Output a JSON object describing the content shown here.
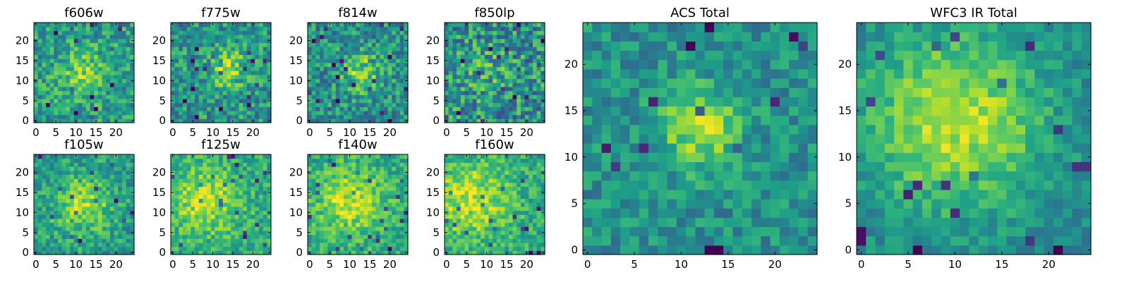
{
  "chart_data": [
    {
      "type": "heatmap",
      "title": "f606w",
      "grid": 25,
      "xticks": [
        0,
        5,
        10,
        15,
        20
      ],
      "yticks": [
        0,
        5,
        10,
        15,
        20
      ],
      "colormap": "viridis",
      "seed": 11,
      "blob": {
        "x": 12,
        "y": 12,
        "sigma": 4,
        "amp": 0.25
      },
      "noise": 0.42,
      "base": 0.55
    },
    {
      "type": "heatmap",
      "title": "f775w",
      "grid": 25,
      "xticks": [
        0,
        5,
        10,
        15,
        20
      ],
      "yticks": [
        0,
        5,
        10,
        15,
        20
      ],
      "colormap": "viridis",
      "seed": 23,
      "blob": {
        "x": 14,
        "y": 13,
        "sigma": 3.5,
        "amp": 0.3
      },
      "noise": 0.45,
      "base": 0.52
    },
    {
      "type": "heatmap",
      "title": "f814w",
      "grid": 25,
      "xticks": [
        0,
        5,
        10,
        15,
        20
      ],
      "yticks": [
        0,
        5,
        10,
        15,
        20
      ],
      "colormap": "viridis",
      "seed": 37,
      "blob": {
        "x": 13,
        "y": 12,
        "sigma": 3.5,
        "amp": 0.3
      },
      "noise": 0.45,
      "base": 0.5
    },
    {
      "type": "heatmap",
      "title": "f850lp",
      "grid": 25,
      "xticks": [
        0,
        5,
        10,
        15,
        20
      ],
      "yticks": [
        0,
        5,
        10,
        15,
        20
      ],
      "colormap": "viridis",
      "seed": 41,
      "blob": {
        "x": 10,
        "y": 12,
        "sigma": 5,
        "amp": 0.1
      },
      "noise": 0.55,
      "base": 0.5
    },
    {
      "type": "heatmap",
      "title": "f105w",
      "grid": 25,
      "xticks": [
        0,
        5,
        10,
        15,
        20
      ],
      "yticks": [
        0,
        5,
        10,
        15,
        20
      ],
      "colormap": "viridis",
      "seed": 53,
      "blob": {
        "x": 12,
        "y": 12,
        "sigma": 5,
        "amp": 0.3
      },
      "noise": 0.35,
      "base": 0.55
    },
    {
      "type": "heatmap",
      "title": "f125w",
      "grid": 25,
      "xticks": [
        0,
        5,
        10,
        15,
        20
      ],
      "yticks": [
        0,
        5,
        10,
        15,
        20
      ],
      "colormap": "viridis",
      "seed": 61,
      "blob": {
        "x": 8,
        "y": 13,
        "sigma": 6,
        "amp": 0.3
      },
      "noise": 0.32,
      "base": 0.6
    },
    {
      "type": "heatmap",
      "title": "f140w",
      "grid": 25,
      "xticks": [
        0,
        5,
        10,
        15,
        20
      ],
      "yticks": [
        0,
        5,
        10,
        15,
        20
      ],
      "colormap": "viridis",
      "seed": 71,
      "blob": {
        "x": 10,
        "y": 13,
        "sigma": 6,
        "amp": 0.3
      },
      "noise": 0.33,
      "base": 0.6
    },
    {
      "type": "heatmap",
      "title": "f160w",
      "grid": 25,
      "xticks": [
        0,
        5,
        10,
        15,
        20
      ],
      "yticks": [
        0,
        5,
        10,
        15,
        20
      ],
      "colormap": "viridis",
      "seed": 83,
      "blob": {
        "x": 6,
        "y": 13,
        "sigma": 7,
        "amp": 0.3
      },
      "noise": 0.33,
      "base": 0.6
    },
    {
      "type": "heatmap",
      "title": "ACS Total",
      "grid": 25,
      "xticks": [
        0,
        5,
        10,
        15,
        20
      ],
      "yticks": [
        0,
        5,
        10,
        15,
        20
      ],
      "colormap": "viridis",
      "seed": 97,
      "blob": {
        "x": 12,
        "y": 13,
        "sigma": 3,
        "amp": 0.38
      },
      "noise": 0.32,
      "base": 0.5
    },
    {
      "type": "heatmap",
      "title": "WFC3 IR Total",
      "grid": 25,
      "xticks": [
        0,
        5,
        10,
        15,
        20
      ],
      "yticks": [
        0,
        5,
        10,
        15,
        20
      ],
      "colormap": "viridis",
      "seed": 101,
      "blob": {
        "x": 10,
        "y": 14,
        "sigma": 7,
        "amp": 0.45
      },
      "noise": 0.25,
      "base": 0.45
    }
  ]
}
